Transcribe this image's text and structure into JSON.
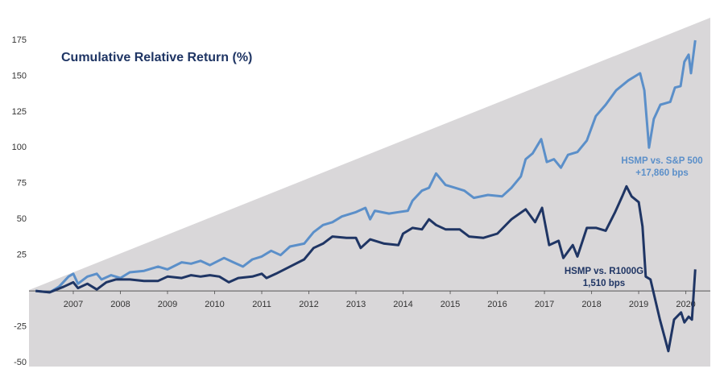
{
  "chart_data": {
    "type": "line",
    "title": "Cumulative Relative Return (%)",
    "xlim": [
      2006.06,
      2020.52
    ],
    "xticks": [
      2007,
      2008,
      2009,
      2010,
      2011,
      2012,
      2013,
      2014,
      2015,
      2016,
      2017,
      2018,
      2019,
      2020
    ],
    "ylim": [
      -50,
      175
    ],
    "yticks": [
      -50,
      -25,
      25,
      50,
      75,
      100,
      125,
      150,
      175
    ],
    "annotations": [
      "HSMP vs. S&P 500",
      "+17,860 bps",
      "HSMP vs. R1000G",
      "1,510 bps"
    ],
    "series": [
      {
        "name": "HSMP vs. S&P 500",
        "color": "#5b8fc9",
        "x": [
          2006.2,
          2006.5,
          2006.7,
          2006.9,
          2007.0,
          2007.1,
          2007.3,
          2007.5,
          2007.6,
          2007.8,
          2008.0,
          2008.2,
          2008.5,
          2008.8,
          2009.0,
          2009.3,
          2009.5,
          2009.7,
          2009.9,
          2010.2,
          2010.4,
          2010.6,
          2010.8,
          2011.0,
          2011.2,
          2011.4,
          2011.6,
          2011.9,
          2012.1,
          2012.3,
          2012.5,
          2012.7,
          2013.0,
          2013.2,
          2013.3,
          2013.4,
          2013.7,
          2013.9,
          2014.1,
          2014.2,
          2014.4,
          2014.55,
          2014.7,
          2014.9,
          2015.1,
          2015.3,
          2015.5,
          2015.8,
          2016.1,
          2016.3,
          2016.5,
          2016.6,
          2016.75,
          2016.93,
          2017.05,
          2017.2,
          2017.35,
          2017.5,
          2017.7,
          2017.9,
          2018.09,
          2018.3,
          2018.52,
          2018.78,
          2019.03,
          2019.12,
          2019.22,
          2019.32,
          2019.46,
          2019.67,
          2019.77,
          2019.89,
          2019.97,
          2020.06,
          2020.11,
          2020.2
        ],
        "values": [
          0,
          -1,
          3,
          10,
          12,
          5,
          10,
          12,
          8,
          11,
          9,
          13,
          14,
          17,
          15,
          20,
          19,
          21,
          18,
          23,
          20,
          17,
          22,
          24,
          28,
          25,
          31,
          33,
          41,
          46,
          48,
          52,
          55,
          58,
          50,
          56,
          54,
          55,
          56,
          63,
          70,
          72,
          82,
          74,
          72,
          70,
          65,
          67,
          66,
          72,
          80,
          92,
          96,
          106,
          90,
          92,
          86,
          95,
          97,
          105,
          122,
          130,
          140,
          147,
          152,
          140,
          100,
          120,
          130,
          132,
          142,
          143,
          160,
          165,
          152,
          175
        ]
      },
      {
        "name": "HSMP vs. R1000G",
        "color": "#1f3564",
        "x": [
          2006.2,
          2006.5,
          2006.8,
          2007.0,
          2007.1,
          2007.3,
          2007.5,
          2007.7,
          2007.9,
          2008.2,
          2008.5,
          2008.8,
          2009.0,
          2009.3,
          2009.5,
          2009.7,
          2009.9,
          2010.1,
          2010.3,
          2010.5,
          2010.8,
          2011.0,
          2011.1,
          2011.3,
          2011.6,
          2011.9,
          2012.1,
          2012.3,
          2012.5,
          2012.8,
          2013.0,
          2013.1,
          2013.3,
          2013.6,
          2013.9,
          2014.0,
          2014.2,
          2014.4,
          2014.55,
          2014.7,
          2014.9,
          2015.2,
          2015.4,
          2015.7,
          2016.0,
          2016.3,
          2016.6,
          2016.8,
          2016.95,
          2017.1,
          2017.3,
          2017.4,
          2017.6,
          2017.7,
          2017.9,
          2018.1,
          2018.3,
          2018.5,
          2018.65,
          2018.74,
          2018.85,
          2019.0,
          2019.08,
          2019.15,
          2019.25,
          2019.45,
          2019.63,
          2019.75,
          2019.9,
          2019.97,
          2020.06,
          2020.13,
          2020.2
        ],
        "values": [
          0,
          -1,
          3,
          6,
          2,
          5,
          1,
          6,
          8,
          8,
          7,
          7,
          10,
          9,
          11,
          10,
          11,
          10,
          6,
          9,
          10,
          12,
          9,
          12,
          17,
          22,
          30,
          33,
          38,
          37,
          37,
          30,
          36,
          33,
          32,
          40,
          44,
          43,
          50,
          46,
          43,
          43,
          38,
          37,
          40,
          50,
          57,
          48,
          58,
          32,
          35,
          23,
          32,
          24,
          44,
          44,
          42,
          55,
          66,
          73,
          66,
          62,
          45,
          10,
          8,
          -20,
          -42,
          -20,
          -15,
          -22,
          -18,
          -20,
          15
        ]
      }
    ]
  }
}
